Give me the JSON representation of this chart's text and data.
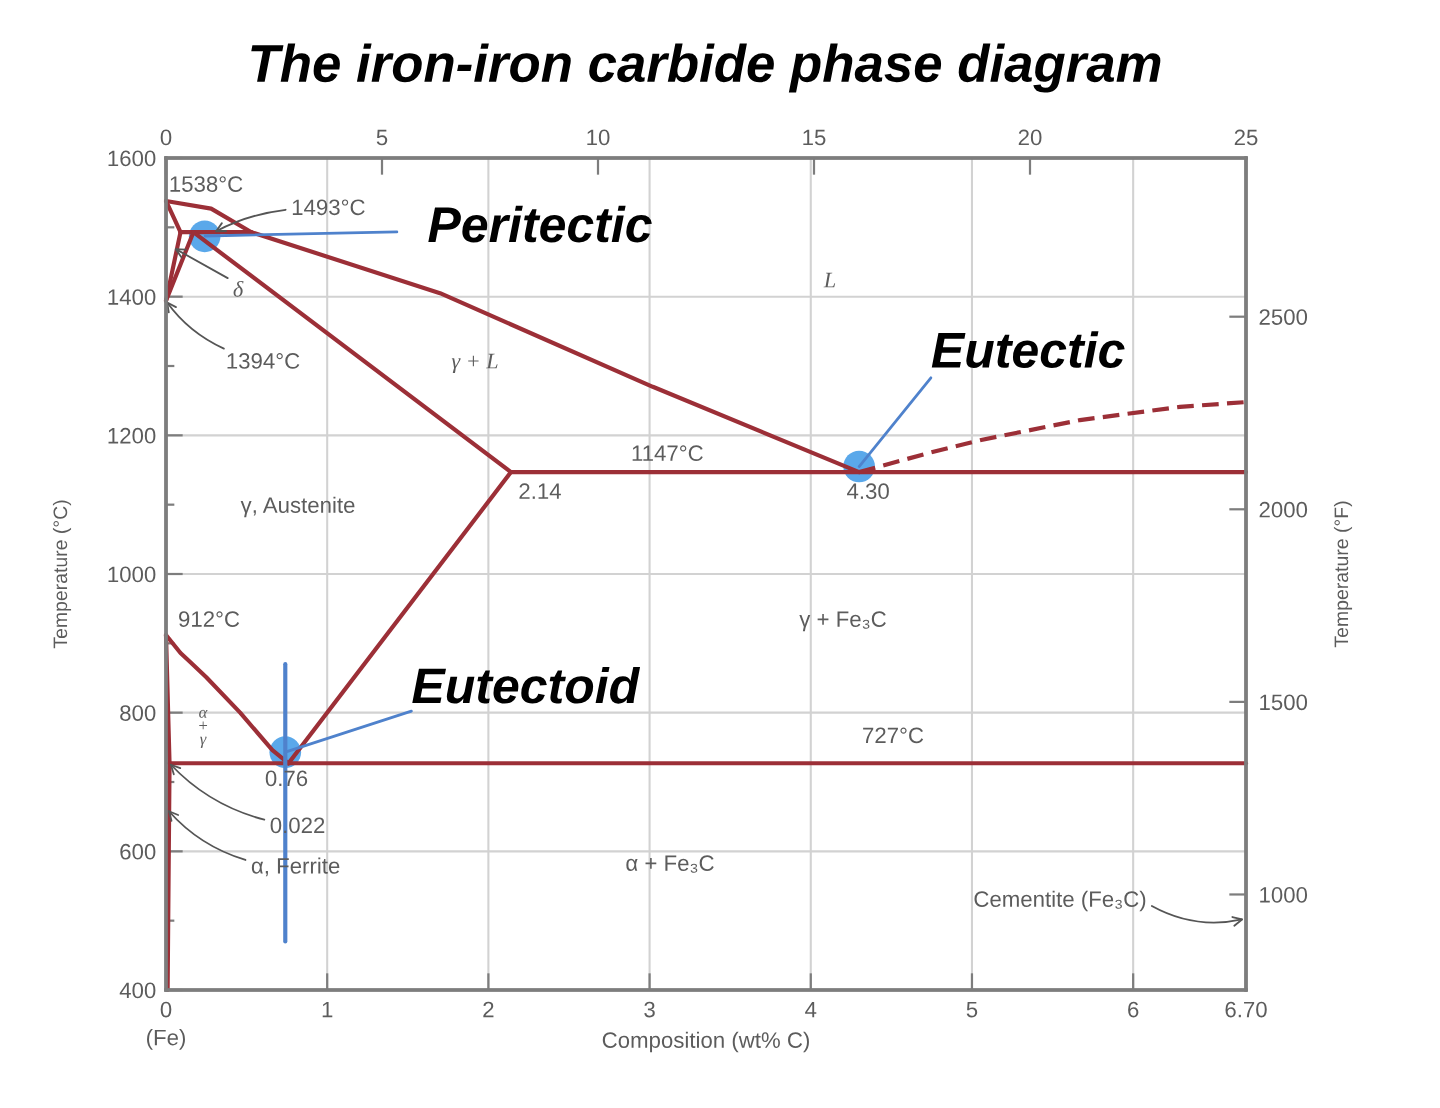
{
  "chart_data": {
    "type": "line",
    "title": "The iron-iron carbide phase diagram",
    "xlabel": "Composition (wt% C)",
    "ylabel": "Temperature (°C)",
    "y2label": "Temperature (°F)",
    "xlim": [
      0,
      6.7
    ],
    "xticks": [
      {
        "value": 0,
        "label": "0\n(Fe)"
      },
      1,
      2,
      3,
      4,
      5,
      6,
      {
        "value": 6.7,
        "label": "6.70"
      }
    ],
    "ylim": [
      400,
      1600
    ],
    "yticks": [
      400,
      {
        "value": 500,
        "label": null
      },
      600,
      {
        "value": 700,
        "label": null
      },
      800,
      {
        "value": 900,
        "label": null
      },
      1000,
      {
        "value": 1100,
        "label": null
      },
      1200,
      {
        "value": 1300,
        "label": null
      },
      1400,
      {
        "value": 1500,
        "label": null
      },
      1600
    ],
    "x2lim": [
      0,
      25
    ],
    "x2ticks": [
      0,
      5,
      10,
      15,
      20,
      25
    ],
    "y2lim": [
      752,
      2912
    ],
    "y2ticks": [
      1000,
      1500,
      2000,
      2500
    ],
    "grid": true,
    "series": [
      {
        "color": "#9c2f37",
        "x": [
          0,
          0.28,
          0.53,
          1.7,
          3.02,
          4.3
        ],
        "values": [
          1538,
          1527,
          1493,
          1405,
          1270,
          1147
        ]
      },
      {
        "color": "#9c2f37",
        "x": [
          0,
          0.09
        ],
        "values": [
          1538,
          1493
        ]
      },
      {
        "color": "#9c2f37",
        "x": [
          0.09,
          0.53
        ],
        "values": [
          1493,
          1493
        ]
      },
      {
        "color": "#9c2f37",
        "x": [
          0,
          0.09
        ],
        "values": [
          1394,
          1493
        ]
      },
      {
        "color": "#9c2f37",
        "x": [
          0,
          0.17
        ],
        "values": [
          1394,
          1493
        ]
      },
      {
        "color": "#9c2f37",
        "x": [
          0.17,
          2.14
        ],
        "values": [
          1493,
          1147
        ]
      },
      {
        "color": "#9c2f37",
        "x": [
          2.14,
          6.7
        ],
        "values": [
          1147,
          1147
        ]
      },
      {
        "color": "#9c2f37",
        "x": [
          2.14,
          0.76
        ],
        "values": [
          1147,
          727
        ]
      },
      {
        "color": "#9c2f37",
        "x": [
          0.022,
          6.7
        ],
        "values": [
          727,
          727
        ]
      },
      {
        "color": "#9c2f37",
        "x": [
          0,
          0.09,
          0.15,
          0.25,
          0.46,
          0.66,
          0.76
        ],
        "values": [
          912,
          886,
          873,
          851,
          800,
          746,
          727
        ]
      },
      {
        "color": "#9c2f37",
        "x": [
          0,
          0.022
        ],
        "values": [
          912,
          727
        ]
      },
      {
        "color": "#9c2f37",
        "x": [
          0.022,
          0.01
        ],
        "values": [
          727,
          400
        ]
      },
      {
        "color": "#9c2f37",
        "line_style": "dashed",
        "x": [
          4.3,
          4.74,
          5.05,
          5.67,
          6.29,
          6.7
        ],
        "values": [
          1147,
          1175,
          1193,
          1222,
          1241,
          1248
        ]
      },
      {
        "color": "#4f82cc",
        "x": [
          0.74,
          0.74
        ],
        "values": [
          870,
          470
        ]
      },
      {
        "type": "scatter",
        "color": "#5aa8ea",
        "marker": "circle",
        "x": [
          0.24,
          4.3,
          0.74
        ],
        "values": [
          1487,
          1155,
          743
        ]
      }
    ],
    "annotations": [
      {
        "text": "1538°C",
        "x": 0,
        "y": 1538
      },
      {
        "text": "1493°C",
        "x": 0.3,
        "y": 1493
      },
      {
        "text": "δ",
        "x": 0.05,
        "y": 1470
      },
      {
        "text": "1394°C",
        "x": 0,
        "y": 1394
      },
      "γ + L",
      "L",
      {
        "text": "1147°C",
        "x": 3.11,
        "y": 1147
      },
      {
        "text": "2.14",
        "x": 2.14,
        "y": 1147
      },
      {
        "text": "4.30",
        "x": 4.3,
        "y": 1147
      },
      "γ, Austenite",
      {
        "text": "912°C",
        "x": 0,
        "y": 912
      },
      "γ + Fe₃C",
      "α\n+\nγ",
      {
        "text": "727°C",
        "x": 4.51,
        "y": 727
      },
      {
        "text": "0.76",
        "x": 0.76,
        "y": 727
      },
      {
        "text": "0.022",
        "x": 0.022,
        "y": 727
      },
      {
        "text": "α, Ferrite",
        "x": 0.01,
        "y": 660
      },
      "α + Fe₃C",
      "Cementite (Fe₃C)",
      "Peritectic",
      {
        "text": "Eutectic",
        "x": 4.3,
        "y": 1155
      },
      {
        "text": "Eutectoid",
        "x": 0.74,
        "y": 743
      }
    ]
  }
}
